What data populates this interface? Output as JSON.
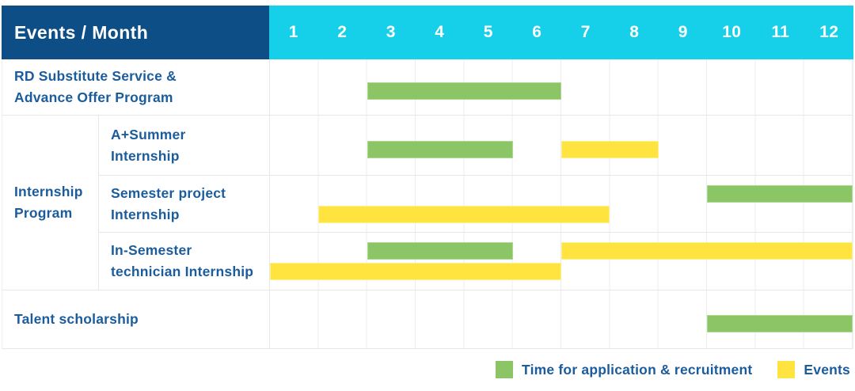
{
  "colors": {
    "header_bg": "#0d4e86",
    "months_bg": "#16d0e9",
    "header_text": "#ffffff",
    "label_text": "#1b5c9d",
    "grid_line": "#e7e7e7",
    "application": "#8bc566",
    "application_border": "#aed792",
    "event": "#ffe33f",
    "event_border": "#fff08f"
  },
  "header": {
    "title": "Events / Month"
  },
  "chart_data": {
    "type": "gantt",
    "title": "Events / Month",
    "months": [
      "1",
      "2",
      "3",
      "4",
      "5",
      "6",
      "7",
      "8",
      "9",
      "10",
      "11",
      "12"
    ],
    "x_range": [
      1,
      12
    ],
    "rows": [
      {
        "group": "",
        "label": "RD Substitute Service &\nAdvance Offer Program",
        "lines": [
          [
            {
              "type": "application",
              "start": 3,
              "end": 6
            }
          ]
        ]
      },
      {
        "group": "Internship\nProgram",
        "label": "A+Summer\nInternship",
        "lines": [
          [
            {
              "type": "application",
              "start": 3,
              "end": 5
            },
            {
              "type": "event",
              "start": 7,
              "end": 8
            }
          ]
        ]
      },
      {
        "group": "Internship\nProgram",
        "label": "Semester project\nInternship",
        "lines": [
          [
            {
              "type": "application",
              "start": 10,
              "end": 12
            }
          ],
          [
            {
              "type": "event",
              "start": 2,
              "end": 7
            }
          ]
        ]
      },
      {
        "group": "Internship\nProgram",
        "label": "In-Semester\ntechnician Internship",
        "lines": [
          [
            {
              "type": "application",
              "start": 3,
              "end": 5
            },
            {
              "type": "event",
              "start": 7,
              "end": 12
            }
          ],
          [
            {
              "type": "event",
              "start": 1,
              "end": 6
            }
          ]
        ]
      },
      {
        "group": "",
        "label": "Talent scholarship",
        "lines": [
          [
            {
              "type": "application",
              "start": 10,
              "end": 12
            }
          ]
        ]
      }
    ],
    "legend": [
      {
        "label": "Time for application & recruitment",
        "type": "application"
      },
      {
        "label": "Events",
        "type": "event"
      }
    ],
    "legend_position": "bottom-right"
  }
}
